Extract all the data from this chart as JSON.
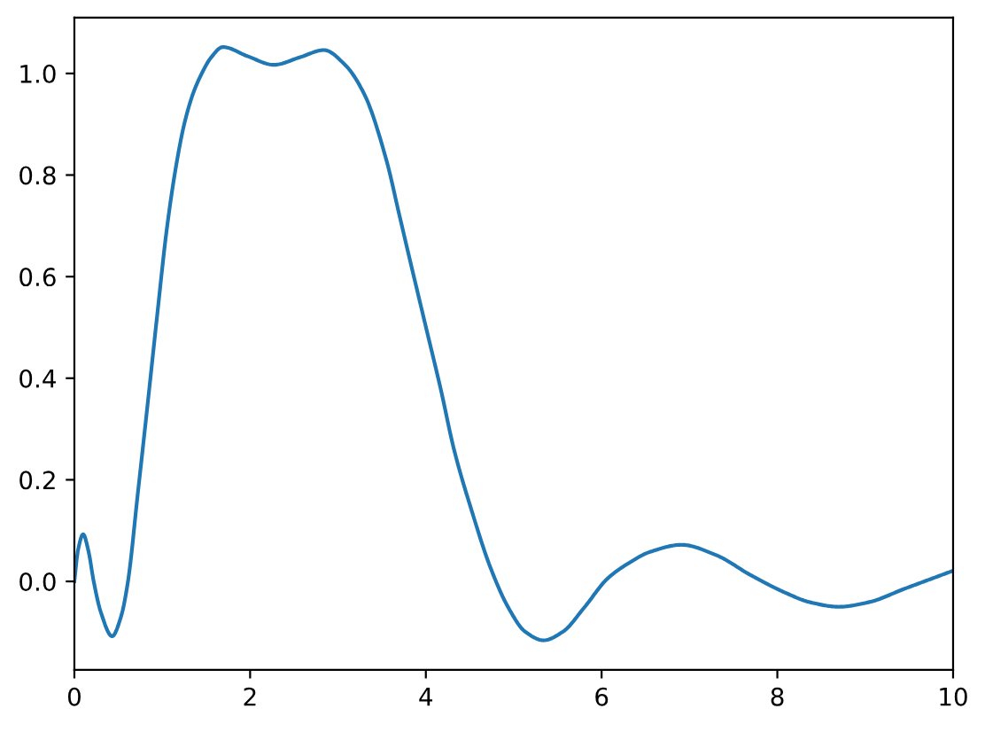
{
  "chart_data": {
    "type": "line",
    "x": [
      0,
      0.04,
      0.1,
      0.16,
      0.22,
      0.3,
      0.43,
      0.53,
      0.61,
      0.72,
      0.83,
      0.94,
      1.05,
      1.15,
      1.25,
      1.35,
      1.45,
      1.55,
      1.69,
      1.97,
      2.27,
      2.57,
      2.84,
      3.08,
      3.3,
      3.55,
      3.7,
      3.85,
      4.01,
      4.17,
      4.32,
      4.52,
      4.74,
      4.94,
      5.13,
      5.34,
      5.56,
      5.8,
      6.07,
      6.3,
      6.55,
      6.91,
      7.3,
      7.7,
      8.1,
      8.37,
      8.7,
      9.04,
      9.44,
      10
    ],
    "values": [
      0.0,
      0.06,
      0.093,
      0.06,
      0.0,
      -0.06,
      -0.108,
      -0.07,
      0.0,
      0.17,
      0.343,
      0.52,
      0.691,
      0.81,
      0.9,
      0.96,
      1.0,
      1.03,
      1.052,
      1.034,
      1.017,
      1.032,
      1.046,
      1.017,
      0.959,
      0.83,
      0.72,
      0.61,
      0.494,
      0.378,
      0.26,
      0.14,
      0.025,
      -0.052,
      -0.099,
      -0.116,
      -0.099,
      -0.052,
      0.006,
      0.035,
      0.058,
      0.072,
      0.052,
      0.012,
      -0.023,
      -0.041,
      -0.05,
      -0.041,
      -0.015,
      0.021
    ],
    "color": "#1f77b4",
    "line_style": "solid",
    "xlim": [
      0,
      10
    ],
    "ylim": [
      -0.174,
      1.11
    ],
    "xticks": [
      0,
      2,
      4,
      6,
      8,
      10
    ],
    "yticks": [
      {
        "value": 0,
        "label": "0.0"
      },
      0.2,
      0.4,
      0.6,
      0.8,
      {
        "value": 1,
        "label": "1.0"
      }
    ]
  }
}
